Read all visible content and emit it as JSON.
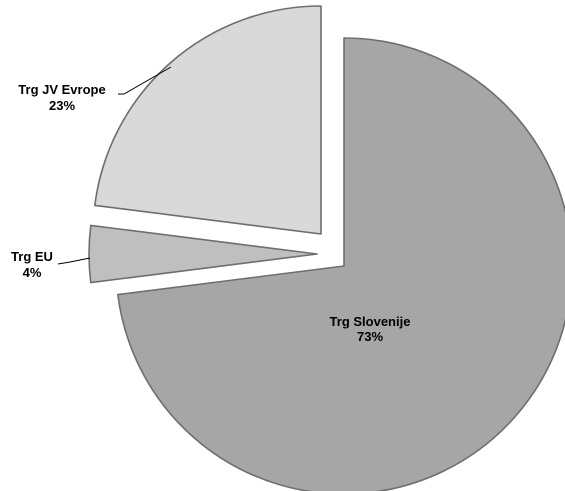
{
  "chart_data": {
    "type": "pie",
    "exploded": true,
    "slices": [
      {
        "label": "Trg Slovenije",
        "value": 73,
        "value_label": "73%",
        "color": "#a6a6a6"
      },
      {
        "label": "Trg EU",
        "value": 4,
        "value_label": "4%",
        "color": "#bfbfbf"
      },
      {
        "label": "Trg JV Evrope",
        "value": 23,
        "value_label": "23%",
        "color": "#d9d9d9"
      }
    ]
  }
}
